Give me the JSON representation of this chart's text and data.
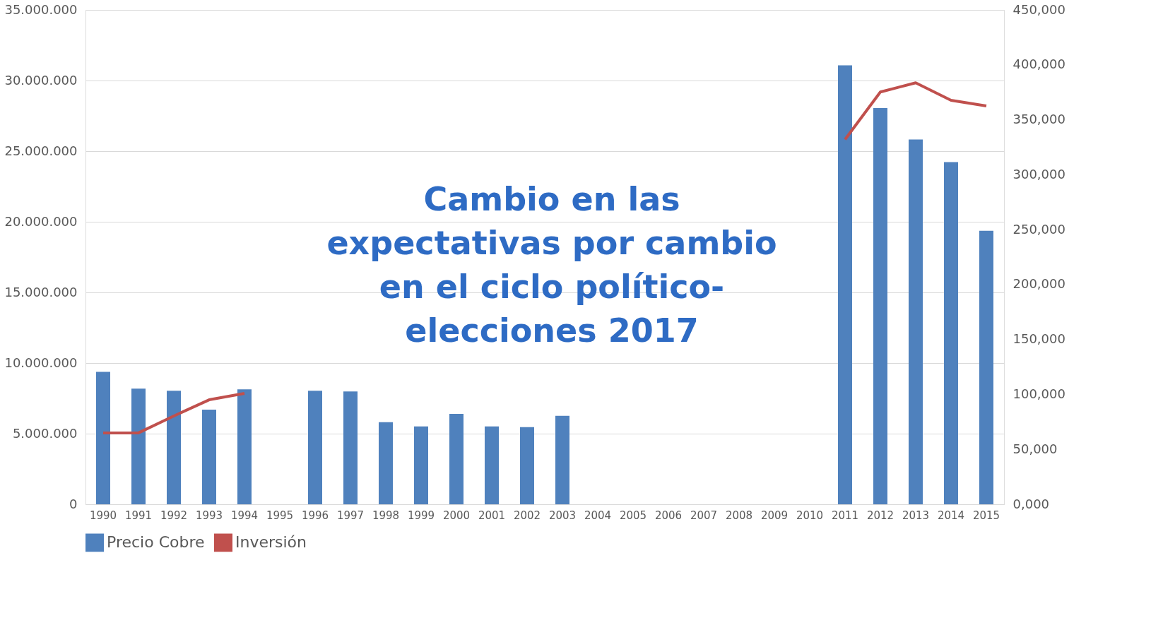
{
  "chart_data": {
    "type": "bar",
    "categories": [
      "1990",
      "1991",
      "1992",
      "1993",
      "1994",
      "1995",
      "1996",
      "1997",
      "1998",
      "1999",
      "2000",
      "2001",
      "2002",
      "2003",
      "2004",
      "2005",
      "2006",
      "2007",
      "2008",
      "2009",
      "2010",
      "2011",
      "2012",
      "2013",
      "2014",
      "2015"
    ],
    "series": [
      {
        "name": "Precio Cobre",
        "color": "#4f81bd",
        "values": [
          9380000,
          8190000,
          8040000,
          6700000,
          8140000,
          null,
          8040000,
          7990000,
          5810000,
          5510000,
          6400000,
          5510000,
          5460000,
          6260000,
          null,
          null,
          null,
          null,
          null,
          null,
          null,
          31080000,
          28050000,
          25820000,
          24230000,
          19360000
        ]
      },
      {
        "name": "Inversión",
        "type": "line",
        "axis": "y2",
        "color": "#c0504d",
        "values": [
          65.0,
          65.0,
          80.4,
          95.1,
          100.9,
          null,
          null,
          null,
          null,
          null,
          null,
          null,
          null,
          null,
          null,
          null,
          null,
          null,
          null,
          null,
          null,
          332.0,
          375.3,
          383.6,
          367.7,
          362.6
        ]
      }
    ],
    "ylim": [
      0,
      35000000
    ],
    "yticks": [
      0,
      {
        "value": 5000000,
        "label": "5.000.000"
      },
      {
        "value": 10000000,
        "label": "10.000.000"
      },
      {
        "value": 15000000,
        "label": "15.000.000"
      },
      {
        "value": 20000000,
        "label": "20.000.000"
      },
      {
        "value": 25000000,
        "label": "25.000.000"
      },
      {
        "value": 30000000,
        "label": "30.000.000"
      },
      {
        "value": 35000000,
        "label": "35.000.000"
      }
    ],
    "y2lim": [
      0,
      450
    ],
    "y2ticks": [
      {
        "value": 0,
        "label": "0,000"
      },
      {
        "value": 50,
        "label": "50,000"
      },
      {
        "value": 100,
        "label": "100,000"
      },
      {
        "value": 150,
        "label": "150,000"
      },
      {
        "value": 200,
        "label": "200,000"
      },
      {
        "value": 250,
        "label": "250,000"
      },
      {
        "value": 300,
        "label": "300,000"
      },
      {
        "value": 350,
        "label": "350,000"
      },
      {
        "value": 400,
        "label": "400,000"
      },
      {
        "value": 450,
        "label": "450,000"
      }
    ],
    "annotations": [
      "Cambio en las\nexpectativas por cambio\nen el ciclo político-\nelecciones 2017"
    ],
    "grid": "y",
    "legend": "bottom"
  }
}
